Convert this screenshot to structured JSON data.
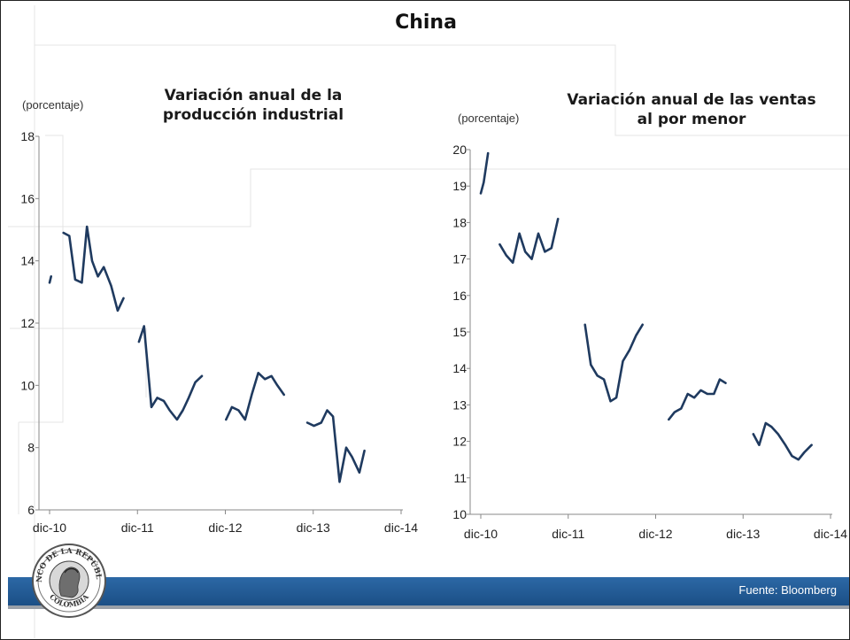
{
  "page": {
    "title": "China",
    "source": "Fuente: Bloomberg"
  },
  "logo": {
    "text_top": "BANCO DE LA REPÚBLICA",
    "text_bottom": "COLOMBIA"
  },
  "colors": {
    "line": "#1f3a5f",
    "footer": "#1f5792",
    "axis": "#888888"
  },
  "chart_data": [
    {
      "type": "line",
      "title": "Variación anual de la\nproducción industrial",
      "ylabel": "(porcentaje)",
      "xlabel": "",
      "ylim": [
        6,
        18
      ],
      "yticks": [
        6,
        8,
        10,
        12,
        14,
        16,
        18
      ],
      "xticks": [
        "dic-10",
        "dic-11",
        "dic-12",
        "dic-13",
        "dic-14"
      ],
      "xdomain": [
        0,
        48
      ],
      "grid": false,
      "legend": "none",
      "segments": [
        [
          [
            0,
            13.3
          ],
          [
            0.2,
            13.5
          ]
        ],
        [
          [
            1.9,
            14.9
          ],
          [
            2.7,
            14.8
          ],
          [
            3.5,
            13.4
          ],
          [
            4.4,
            13.3
          ],
          [
            5.1,
            15.1
          ],
          [
            5.8,
            14.0
          ],
          [
            6.6,
            13.5
          ],
          [
            7.4,
            13.8
          ],
          [
            8.4,
            13.2
          ],
          [
            9.3,
            12.4
          ],
          [
            10.1,
            12.8
          ]
        ],
        [
          [
            12.2,
            11.4
          ],
          [
            12.9,
            11.9
          ],
          [
            13.9,
            9.3
          ],
          [
            14.7,
            9.6
          ],
          [
            15.6,
            9.5
          ],
          [
            16.4,
            9.2
          ],
          [
            17.4,
            8.9
          ],
          [
            18.2,
            9.2
          ],
          [
            19.0,
            9.6
          ],
          [
            19.9,
            10.1
          ],
          [
            20.8,
            10.3
          ]
        ],
        [
          [
            24.1,
            8.9
          ],
          [
            24.9,
            9.3
          ],
          [
            25.8,
            9.2
          ],
          [
            26.7,
            8.9
          ],
          [
            27.6,
            9.7
          ],
          [
            28.5,
            10.4
          ],
          [
            29.4,
            10.2
          ],
          [
            30.3,
            10.3
          ],
          [
            31.1,
            10.0
          ],
          [
            32.0,
            9.7
          ]
        ],
        [
          [
            35.2,
            8.8
          ],
          [
            36.1,
            8.7
          ],
          [
            37.1,
            8.8
          ],
          [
            37.9,
            9.2
          ],
          [
            38.7,
            9.0
          ],
          [
            39.6,
            6.9
          ],
          [
            40.5,
            8.0
          ],
          [
            41.3,
            7.7
          ],
          [
            42.3,
            7.2
          ],
          [
            43.0,
            7.9
          ]
        ]
      ]
    },
    {
      "type": "line",
      "title": "Variación anual de las ventas\nal por menor",
      "ylabel": "(porcentaje)",
      "xlabel": "",
      "ylim": [
        10,
        20
      ],
      "yticks": [
        10,
        11,
        12,
        13,
        14,
        15,
        16,
        17,
        18,
        19,
        20
      ],
      "xticks": [
        "dic-10",
        "dic-11",
        "dic-12",
        "dic-13",
        "dic-14"
      ],
      "xdomain": [
        0,
        48
      ],
      "grid": false,
      "legend": "none",
      "segments": [
        [
          [
            0,
            18.8
          ],
          [
            0.4,
            19.1
          ],
          [
            1.0,
            19.9
          ]
        ],
        [
          [
            2.6,
            17.4
          ],
          [
            3.5,
            17.1
          ],
          [
            4.4,
            16.9
          ],
          [
            5.3,
            17.7
          ],
          [
            6.1,
            17.2
          ],
          [
            7.0,
            17.0
          ],
          [
            7.9,
            17.7
          ],
          [
            8.8,
            17.2
          ],
          [
            9.7,
            17.3
          ],
          [
            10.6,
            18.1
          ]
        ],
        [
          [
            14.3,
            15.2
          ],
          [
            15.1,
            14.1
          ],
          [
            16.0,
            13.8
          ],
          [
            16.9,
            13.7
          ],
          [
            17.8,
            13.1
          ],
          [
            18.6,
            13.2
          ],
          [
            19.5,
            14.2
          ],
          [
            20.4,
            14.5
          ],
          [
            21.3,
            14.9
          ],
          [
            22.2,
            15.2
          ]
        ],
        [
          [
            25.8,
            12.6
          ],
          [
            26.6,
            12.8
          ],
          [
            27.5,
            12.9
          ],
          [
            28.4,
            13.3
          ],
          [
            29.3,
            13.2
          ],
          [
            30.2,
            13.4
          ],
          [
            31.1,
            13.3
          ],
          [
            32.0,
            13.3
          ],
          [
            32.8,
            13.7
          ],
          [
            33.6,
            13.6
          ]
        ],
        [
          [
            37.4,
            12.2
          ],
          [
            38.2,
            11.9
          ],
          [
            39.1,
            12.5
          ],
          [
            39.9,
            12.4
          ],
          [
            40.8,
            12.2
          ],
          [
            41.8,
            11.9
          ],
          [
            42.7,
            11.6
          ],
          [
            43.6,
            11.5
          ],
          [
            44.4,
            11.7
          ],
          [
            45.4,
            11.9
          ]
        ]
      ]
    }
  ]
}
